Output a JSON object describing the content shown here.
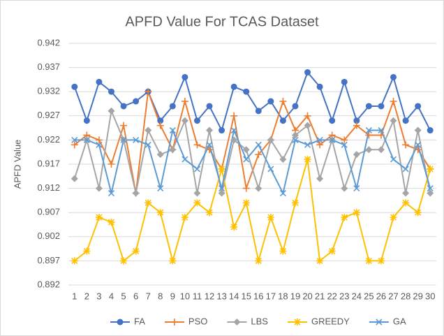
{
  "chart_data": {
    "type": "line",
    "title": "APFD Value For TCAS Dataset",
    "y_label": "APFD Value",
    "categories": [
      "1",
      "2",
      "3",
      "4",
      "5",
      "6",
      "7",
      "8",
      "9",
      "10",
      "11",
      "12",
      "13",
      "14",
      "15",
      "16",
      "17",
      "18",
      "19",
      "20",
      "21",
      "22",
      "23",
      "24",
      "25",
      "26",
      "27",
      "28",
      "29",
      "30"
    ],
    "ylim": [
      0.892,
      0.942
    ],
    "yticks": [
      0.892,
      0.897,
      0.902,
      0.907,
      0.912,
      0.917,
      0.922,
      0.927,
      0.932,
      0.937,
      0.942
    ],
    "grid": true,
    "legend": "bottom",
    "series": [
      {
        "name": "FA",
        "color": "#4472c4",
        "marker": "circle",
        "values": [
          0.933,
          0.926,
          0.934,
          0.932,
          0.929,
          0.93,
          0.932,
          0.926,
          0.929,
          0.935,
          0.926,
          0.929,
          0.924,
          0.933,
          0.932,
          0.928,
          0.93,
          0.926,
          0.929,
          0.936,
          0.933,
          0.926,
          0.934,
          0.926,
          0.929,
          0.929,
          0.935,
          0.926,
          0.929,
          0.924
        ]
      },
      {
        "name": "PSO",
        "color": "#ed7d31",
        "marker": "plus",
        "values": [
          0.921,
          0.923,
          0.922,
          0.917,
          0.925,
          0.911,
          0.932,
          0.925,
          0.92,
          0.93,
          0.921,
          0.92,
          0.916,
          0.927,
          0.912,
          0.919,
          0.922,
          0.93,
          0.924,
          0.927,
          0.921,
          0.923,
          0.922,
          0.925,
          0.923,
          0.923,
          0.93,
          0.921,
          0.92,
          0.916
        ]
      },
      {
        "name": "LBS",
        "color": "#a5a5a5",
        "marker": "diamond",
        "values": [
          0.914,
          0.922,
          0.912,
          0.928,
          0.922,
          0.911,
          0.924,
          0.919,
          0.92,
          0.926,
          0.911,
          0.924,
          0.911,
          0.922,
          0.92,
          0.912,
          0.922,
          0.918,
          0.923,
          0.925,
          0.914,
          0.922,
          0.912,
          0.919,
          0.92,
          0.92,
          0.926,
          0.911,
          0.924,
          0.911
        ]
      },
      {
        "name": "GREEDY",
        "color": "#ffc000",
        "marker": "star",
        "values": [
          0.897,
          0.899,
          0.906,
          0.905,
          0.897,
          0.899,
          0.909,
          0.907,
          0.897,
          0.906,
          0.909,
          0.907,
          0.916,
          0.904,
          0.909,
          0.897,
          0.906,
          0.899,
          0.909,
          0.918,
          0.897,
          0.899,
          0.906,
          0.907,
          0.897,
          0.897,
          0.906,
          0.909,
          0.907,
          0.916
        ]
      },
      {
        "name": "GA",
        "color": "#5b9bd5",
        "marker": "x",
        "values": [
          0.922,
          0.922,
          0.921,
          0.911,
          0.922,
          0.922,
          0.921,
          0.912,
          0.924,
          0.918,
          0.916,
          0.921,
          0.912,
          0.924,
          0.918,
          0.921,
          0.916,
          0.911,
          0.922,
          0.921,
          0.922,
          0.922,
          0.921,
          0.912,
          0.924,
          0.924,
          0.918,
          0.916,
          0.921,
          0.912
        ]
      }
    ]
  }
}
